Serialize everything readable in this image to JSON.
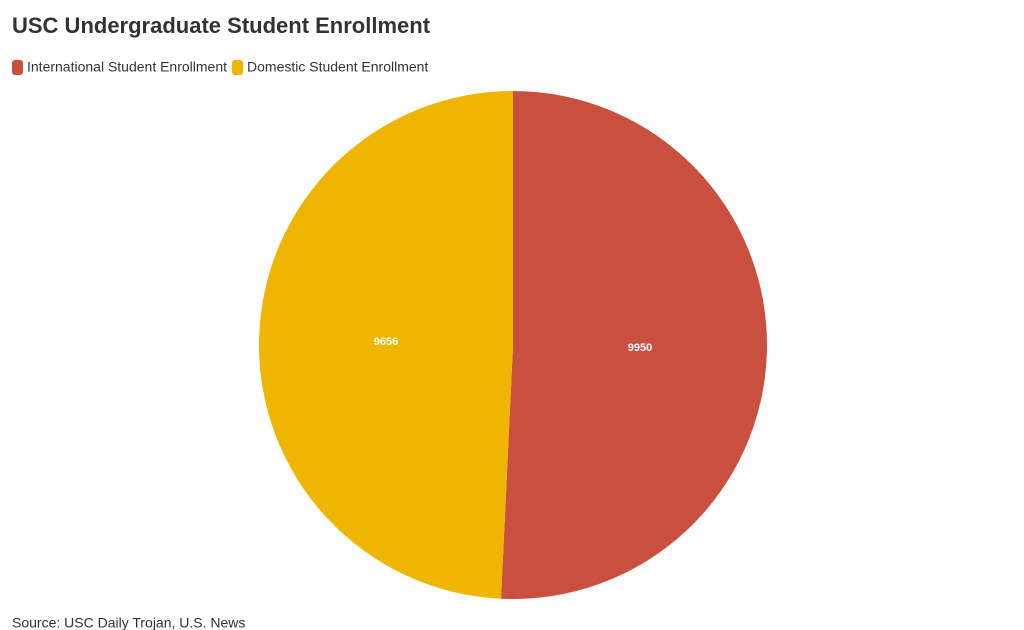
{
  "chart_data": {
    "type": "pie",
    "title": "USC Undergraduate Student Enrollment",
    "categories": [
      "International Student Enrollment",
      "Domestic Student Enrollment"
    ],
    "values": [
      9950,
      9656
    ],
    "colors": [
      "#c9503f",
      "#f0b500"
    ],
    "source": "Source: USC Daily Trojan, U.S. News"
  }
}
